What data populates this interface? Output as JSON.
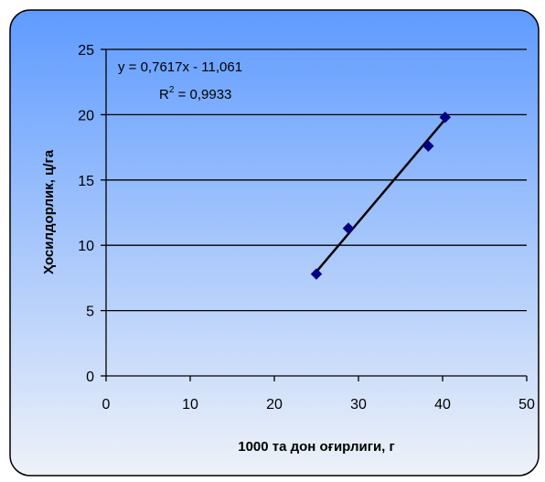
{
  "chart_data": {
    "type": "scatter",
    "title": "",
    "xlabel": "1000 та дон оғирлиги, г",
    "ylabel": "Ҳосилдорлик, ц/га",
    "xlim": [
      0,
      50
    ],
    "ylim": [
      0,
      25
    ],
    "x_ticks": [
      0,
      10,
      20,
      30,
      40,
      50
    ],
    "y_ticks": [
      0,
      5,
      10,
      15,
      20,
      25
    ],
    "grid": "horizontal",
    "legend": "none",
    "series": [
      {
        "points": [
          {
            "x": 25.0,
            "y": 7.8
          },
          {
            "x": 28.8,
            "y": 11.3
          },
          {
            "x": 38.3,
            "y": 17.6
          },
          {
            "x": 40.3,
            "y": 19.8
          }
        ]
      }
    ],
    "trendline": {
      "type": "linear",
      "slope": 0.7617,
      "intercept": -11.061,
      "x_range": [
        25.0,
        40.3
      ]
    },
    "annotations": {
      "equation": "y = 0,7617x - 11,061",
      "r2_prefix": "R",
      "r2_sup": "2",
      "r2_value": " = 0,9933"
    },
    "colors": {
      "background_top": "#5f9bff",
      "background_bottom": "#eef2f8",
      "marker": "#000080",
      "trendline": "#000000",
      "gridline": "#000000",
      "border": "#000000"
    }
  }
}
